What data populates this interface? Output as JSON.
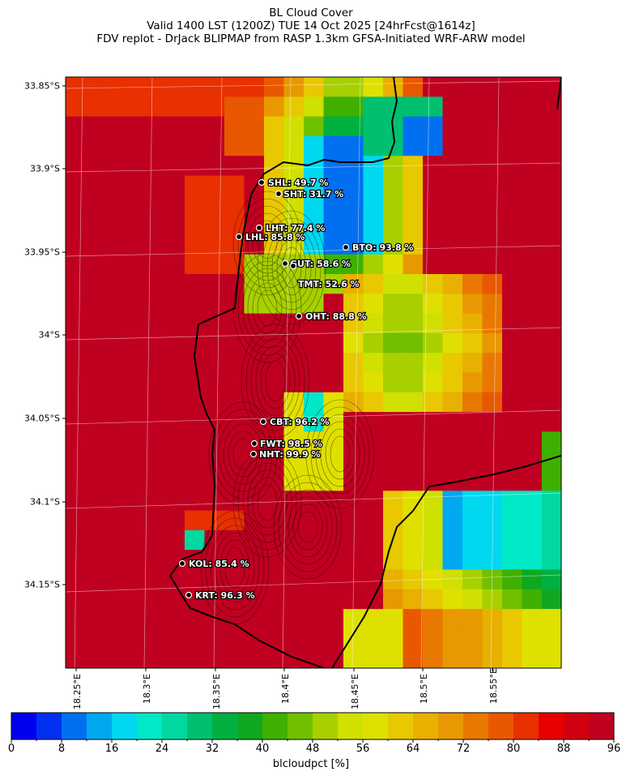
{
  "title": {
    "line1": "BL Cloud Cover",
    "line2": "Valid 1400 LST (1200Z) TUE 14 Oct 2025 [24hrFcst@1614z]",
    "line3": "FDV replot - DrJack BLIPMAP from RASP 1.3km GFSA-Initiated WRF-ARW model"
  },
  "y_ticks": [
    "33.85°S",
    "33.9°S",
    "33.95°S",
    "34°S",
    "34.05°S",
    "34.1°S",
    "34.15°S"
  ],
  "x_ticks": [
    "18.25°E",
    "18.3°E",
    "18.35°E",
    "18.4°E",
    "18.45°E",
    "18.5°E",
    "18.55°E"
  ],
  "colorbar": {
    "label": "blcloudpct [%]",
    "ticks": [
      "0",
      "8",
      "16",
      "24",
      "32",
      "40",
      "48",
      "56",
      "64",
      "72",
      "80",
      "88",
      "96"
    ],
    "colors": [
      "#0000f0",
      "#0030f0",
      "#0070f0",
      "#00a8f0",
      "#00d8f0",
      "#00e8c8",
      "#00d8a0",
      "#00c070",
      "#00b040",
      "#10a820",
      "#40b000",
      "#70c000",
      "#a8d000",
      "#d0e000",
      "#e0e000",
      "#e8c800",
      "#e8b000",
      "#e89800",
      "#e87800",
      "#e85800",
      "#e83000",
      "#e80000",
      "#d00010",
      "#c00020"
    ]
  },
  "stations": [
    {
      "code": "SHL",
      "label": "SHL: 49.7 %",
      "value": 49.7
    },
    {
      "code": "SHT",
      "label": "SHT: 31.7 %",
      "value": 31.7
    },
    {
      "code": "LHT",
      "label": "LHT: 77.4 %",
      "value": 77.4
    },
    {
      "code": "LHL",
      "label": "LHL: 85.8 %",
      "value": 85.8
    },
    {
      "code": "BTO",
      "label": "BTO: 93.8 %",
      "value": 93.8
    },
    {
      "code": "GUT",
      "label": "GUT: 58.6 %",
      "value": 58.6
    },
    {
      "code": "TMT",
      "label": "TMT: 52.6 %",
      "value": 52.6
    },
    {
      "code": "OHT",
      "label": "OHT: 88.8 %",
      "value": 88.8
    },
    {
      "code": "CBT",
      "label": "CBT: 96.2 %",
      "value": 96.2
    },
    {
      "code": "FWT",
      "label": "FWT: 98.5 %",
      "value": 98.5
    },
    {
      "code": "NHT",
      "label": "NHT: 99.9 %",
      "value": 99.9
    },
    {
      "code": "KOL",
      "label": "KOL: 85.4 %",
      "value": 85.4
    },
    {
      "code": "KRT",
      "label": "KRT: 96.3 %",
      "value": 96.3
    }
  ]
}
